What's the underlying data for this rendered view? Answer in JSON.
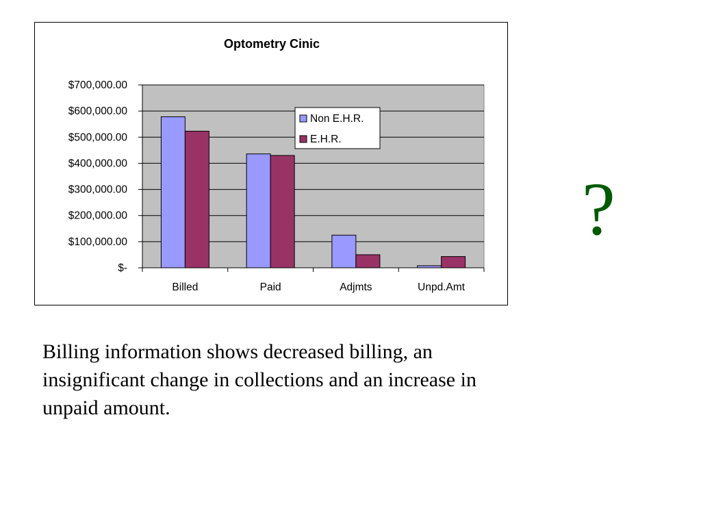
{
  "chart_data": {
    "type": "bar",
    "title": "Optometry Cinic",
    "categories": [
      "Billed",
      "Paid",
      "Adjmts",
      "Unpd.Amt"
    ],
    "series": [
      {
        "name": "Non E.H.R.",
        "values": [
          578000,
          436000,
          125000,
          8000
        ],
        "color": "#9999FF"
      },
      {
        "name": "E.H.R.",
        "values": [
          523000,
          430000,
          50000,
          43000
        ],
        "color": "#993366"
      }
    ],
    "ylim": [
      0,
      700000
    ],
    "yticks": [
      0,
      100000,
      200000,
      300000,
      400000,
      500000,
      600000,
      700000
    ],
    "ytick_labels": [
      "$-",
      "$100,000.00",
      "$200,000.00",
      "$300,000.00",
      "$400,000.00",
      "$500,000.00",
      "$600,000.00",
      "$700,000.00"
    ],
    "xlabel": "",
    "ylabel": "",
    "grid": true,
    "plot_background": "#C0C0C0",
    "legend_position": "top-right"
  },
  "side_mark": "?",
  "caption": "Billing information shows decreased billing, an insignificant change in collections and an increase in unpaid amount."
}
